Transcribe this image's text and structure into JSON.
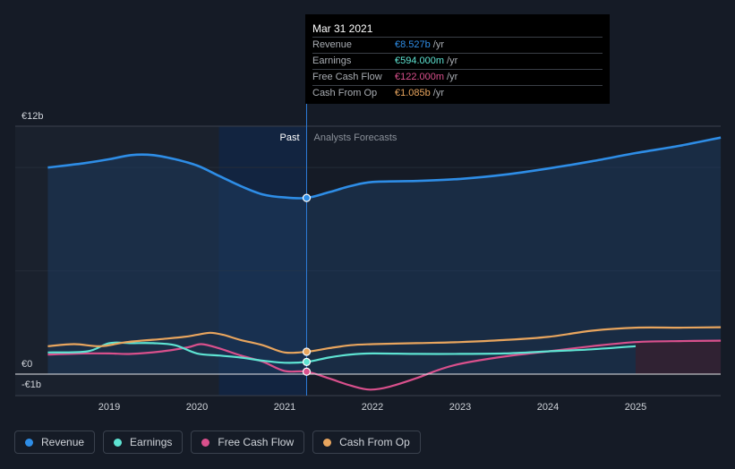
{
  "tooltip": {
    "date": "Mar 31 2021",
    "rows": [
      {
        "label": "Revenue",
        "value": "€8.527b",
        "unit": "/yr",
        "color": "#2e8de6"
      },
      {
        "label": "Earnings",
        "value": "€594.000m",
        "unit": "/yr",
        "color": "#5ee3d2"
      },
      {
        "label": "Free Cash Flow",
        "value": "€122.000m",
        "unit": "/yr",
        "color": "#d9508c"
      },
      {
        "label": "Cash From Op",
        "value": "€1.085b",
        "unit": "/yr",
        "color": "#e8a55e"
      }
    ]
  },
  "legend": [
    {
      "label": "Revenue",
      "color": "#2e8de6"
    },
    {
      "label": "Earnings",
      "color": "#5ee3d2"
    },
    {
      "label": "Free Cash Flow",
      "color": "#d9508c"
    },
    {
      "label": "Cash From Op",
      "color": "#e8a55e"
    }
  ],
  "chart_data": {
    "type": "line",
    "past_label": "Past",
    "forecast_label": "Analysts Forecasts",
    "divider_date": 2021.25,
    "x_ticks": [
      "2019",
      "2020",
      "2021",
      "2022",
      "2023",
      "2024",
      "2025"
    ],
    "x_range": [
      2018.0,
      2025.98
    ],
    "y_range": [
      -1,
      12
    ],
    "y_ticks": [
      {
        "value": 12,
        "label": "€12b"
      },
      {
        "value": 0,
        "label": "€0"
      },
      {
        "value": -1,
        "label": "-€1b"
      }
    ],
    "series": [
      {
        "name": "Revenue",
        "color": "#2e8de6",
        "points": [
          [
            2018.3,
            10.0
          ],
          [
            2018.7,
            10.2
          ],
          [
            2019.0,
            10.4
          ],
          [
            2019.25,
            10.6
          ],
          [
            2019.5,
            10.6
          ],
          [
            2019.75,
            10.4
          ],
          [
            2020.0,
            10.1
          ],
          [
            2020.25,
            9.6
          ],
          [
            2020.5,
            9.1
          ],
          [
            2020.75,
            8.7
          ],
          [
            2021.0,
            8.55
          ],
          [
            2021.25,
            8.53
          ],
          [
            2021.5,
            8.8
          ],
          [
            2021.75,
            9.1
          ],
          [
            2022.0,
            9.3
          ],
          [
            2022.5,
            9.35
          ],
          [
            2023.0,
            9.45
          ],
          [
            2023.5,
            9.65
          ],
          [
            2024.0,
            9.95
          ],
          [
            2024.5,
            10.3
          ],
          [
            2025.0,
            10.7
          ],
          [
            2025.5,
            11.05
          ],
          [
            2025.97,
            11.45
          ]
        ]
      },
      {
        "name": "Earnings",
        "color": "#5ee3d2",
        "points": [
          [
            2018.3,
            1.05
          ],
          [
            2018.75,
            1.1
          ],
          [
            2019.0,
            1.5
          ],
          [
            2019.25,
            1.5
          ],
          [
            2019.5,
            1.5
          ],
          [
            2019.75,
            1.4
          ],
          [
            2020.0,
            1.0
          ],
          [
            2020.25,
            0.9
          ],
          [
            2020.5,
            0.8
          ],
          [
            2020.75,
            0.65
          ],
          [
            2021.0,
            0.55
          ],
          [
            2021.25,
            0.59
          ],
          [
            2021.5,
            0.8
          ],
          [
            2021.75,
            0.95
          ],
          [
            2022.0,
            1.0
          ],
          [
            2022.5,
            0.98
          ],
          [
            2023.0,
            0.98
          ],
          [
            2023.5,
            1.0
          ],
          [
            2024.0,
            1.1
          ],
          [
            2024.5,
            1.2
          ],
          [
            2025.0,
            1.35
          ]
        ]
      },
      {
        "name": "Free Cash Flow",
        "color": "#d9508c",
        "points": [
          [
            2018.3,
            0.95
          ],
          [
            2018.7,
            1.0
          ],
          [
            2019.0,
            1.0
          ],
          [
            2019.25,
            0.98
          ],
          [
            2019.6,
            1.1
          ],
          [
            2019.9,
            1.3
          ],
          [
            2020.05,
            1.45
          ],
          [
            2020.25,
            1.25
          ],
          [
            2020.5,
            0.9
          ],
          [
            2020.75,
            0.6
          ],
          [
            2021.0,
            0.15
          ],
          [
            2021.25,
            0.12
          ],
          [
            2021.5,
            -0.2
          ],
          [
            2021.75,
            -0.55
          ],
          [
            2021.97,
            -0.75
          ],
          [
            2022.2,
            -0.6
          ],
          [
            2022.5,
            -0.2
          ],
          [
            2022.75,
            0.2
          ],
          [
            2023.0,
            0.5
          ],
          [
            2023.5,
            0.85
          ],
          [
            2024.0,
            1.1
          ],
          [
            2024.5,
            1.35
          ],
          [
            2025.0,
            1.55
          ],
          [
            2025.5,
            1.6
          ],
          [
            2025.97,
            1.62
          ]
        ]
      },
      {
        "name": "Cash From Op",
        "color": "#e8a55e",
        "points": [
          [
            2018.3,
            1.35
          ],
          [
            2018.6,
            1.45
          ],
          [
            2018.9,
            1.35
          ],
          [
            2019.2,
            1.55
          ],
          [
            2019.6,
            1.7
          ],
          [
            2019.85,
            1.8
          ],
          [
            2020.0,
            1.9
          ],
          [
            2020.15,
            2.0
          ],
          [
            2020.3,
            1.9
          ],
          [
            2020.5,
            1.65
          ],
          [
            2020.75,
            1.4
          ],
          [
            2021.0,
            1.05
          ],
          [
            2021.25,
            1.085
          ],
          [
            2021.5,
            1.25
          ],
          [
            2021.75,
            1.4
          ],
          [
            2022.0,
            1.45
          ],
          [
            2022.5,
            1.5
          ],
          [
            2023.0,
            1.55
          ],
          [
            2023.5,
            1.65
          ],
          [
            2024.0,
            1.8
          ],
          [
            2024.5,
            2.1
          ],
          [
            2025.0,
            2.25
          ],
          [
            2025.5,
            2.25
          ],
          [
            2025.97,
            2.27
          ]
        ]
      }
    ]
  }
}
